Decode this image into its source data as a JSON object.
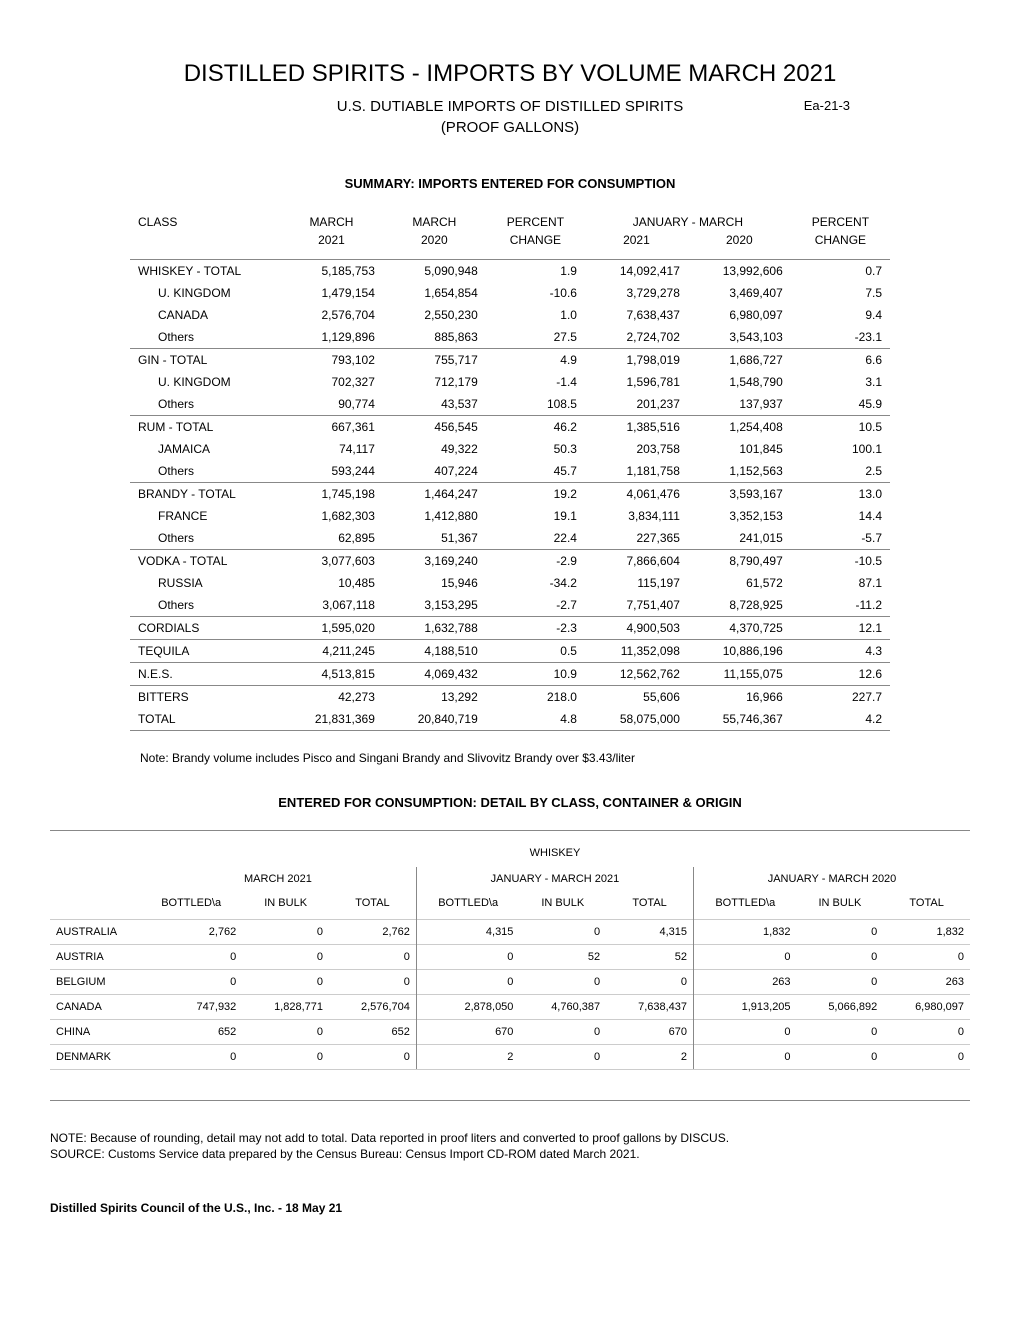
{
  "texts": {
    "main_title": "DISTILLED SPIRITS - IMPORTS BY VOLUME MARCH 2021",
    "subtitle": "U.S. DUTIABLE IMPORTS OF DISTILLED SPIRITS",
    "subtitle2": "(PROOF GALLONS)",
    "ea_code": "Ea-21-3",
    "summary_heading": "SUMMARY: IMPORTS ENTERED FOR CONSUMPTION",
    "note": "Note: Brandy volume includes Pisco and Singani Brandy and Slivovitz Brandy over $3.43/liter",
    "detail_heading": "ENTERED FOR CONSUMPTION:  DETAIL BY CLASS, CONTAINER & ORIGIN",
    "whiskey_label": "WHISKEY",
    "footer_note1": "NOTE:   Because of rounding, detail may not add to total.  Data reported in proof liters and converted to proof gallons by DISCUS.",
    "footer_note2": "SOURCE: Customs Service data prepared by the Census Bureau: Census Import CD-ROM dated March 2021.",
    "page_footer": "Distilled Spirits Council of the U.S., Inc. - 18 May 21"
  },
  "summary": {
    "headers": {
      "class": "CLASS",
      "march": "MARCH",
      "percent": "PERCENT",
      "jan_march": "JANUARY - MARCH",
      "y2021": "2021",
      "y2020": "2020",
      "change": "CHANGE"
    },
    "rows": [
      {
        "class": "WHISKEY - TOTAL",
        "m21": "5,185,753",
        "m20": "5,090,948",
        "pc": "1.9",
        "j21": "14,092,417",
        "j20": "13,992,606",
        "jpc": "0.7",
        "indent": false,
        "sep": true
      },
      {
        "class": "U. KINGDOM",
        "m21": "1,479,154",
        "m20": "1,654,854",
        "pc": "-10.6",
        "j21": "3,729,278",
        "j20": "3,469,407",
        "jpc": "7.5",
        "indent": true,
        "sep": false
      },
      {
        "class": "CANADA",
        "m21": "2,576,704",
        "m20": "2,550,230",
        "pc": "1.0",
        "j21": "7,638,437",
        "j20": "6,980,097",
        "jpc": "9.4",
        "indent": true,
        "sep": false
      },
      {
        "class": "Others",
        "m21": "1,129,896",
        "m20": "885,863",
        "pc": "27.5",
        "j21": "2,724,702",
        "j20": "3,543,103",
        "jpc": "-23.1",
        "indent": true,
        "sep": false
      },
      {
        "class": "GIN - TOTAL",
        "m21": "793,102",
        "m20": "755,717",
        "pc": "4.9",
        "j21": "1,798,019",
        "j20": "1,686,727",
        "jpc": "6.6",
        "indent": false,
        "sep": true
      },
      {
        "class": "U. KINGDOM",
        "m21": "702,327",
        "m20": "712,179",
        "pc": "-1.4",
        "j21": "1,596,781",
        "j20": "1,548,790",
        "jpc": "3.1",
        "indent": true,
        "sep": false
      },
      {
        "class": "Others",
        "m21": "90,774",
        "m20": "43,537",
        "pc": "108.5",
        "j21": "201,237",
        "j20": "137,937",
        "jpc": "45.9",
        "indent": true,
        "sep": false
      },
      {
        "class": "RUM - TOTAL",
        "m21": "667,361",
        "m20": "456,545",
        "pc": "46.2",
        "j21": "1,385,516",
        "j20": "1,254,408",
        "jpc": "10.5",
        "indent": false,
        "sep": true
      },
      {
        "class": "JAMAICA",
        "m21": "74,117",
        "m20": "49,322",
        "pc": "50.3",
        "j21": "203,758",
        "j20": "101,845",
        "jpc": "100.1",
        "indent": true,
        "sep": false
      },
      {
        "class": "Others",
        "m21": "593,244",
        "m20": "407,224",
        "pc": "45.7",
        "j21": "1,181,758",
        "j20": "1,152,563",
        "jpc": "2.5",
        "indent": true,
        "sep": false
      },
      {
        "class": "BRANDY - TOTAL",
        "m21": "1,745,198",
        "m20": "1,464,247",
        "pc": "19.2",
        "j21": "4,061,476",
        "j20": "3,593,167",
        "jpc": "13.0",
        "indent": false,
        "sep": true
      },
      {
        "class": "FRANCE",
        "m21": "1,682,303",
        "m20": "1,412,880",
        "pc": "19.1",
        "j21": "3,834,111",
        "j20": "3,352,153",
        "jpc": "14.4",
        "indent": true,
        "sep": false
      },
      {
        "class": "Others",
        "m21": "62,895",
        "m20": "51,367",
        "pc": "22.4",
        "j21": "227,365",
        "j20": "241,015",
        "jpc": "-5.7",
        "indent": true,
        "sep": false
      },
      {
        "class": "VODKA - TOTAL",
        "m21": "3,077,603",
        "m20": "3,169,240",
        "pc": "-2.9",
        "j21": "7,866,604",
        "j20": "8,790,497",
        "jpc": "-10.5",
        "indent": false,
        "sep": true
      },
      {
        "class": "RUSSIA",
        "m21": "10,485",
        "m20": "15,946",
        "pc": "-34.2",
        "j21": "115,197",
        "j20": "61,572",
        "jpc": "87.1",
        "indent": true,
        "sep": false
      },
      {
        "class": "Others",
        "m21": "3,067,118",
        "m20": "3,153,295",
        "pc": "-2.7",
        "j21": "7,751,407",
        "j20": "8,728,925",
        "jpc": "-11.2",
        "indent": true,
        "sep": false
      },
      {
        "class": "CORDIALS",
        "m21": "1,595,020",
        "m20": "1,632,788",
        "pc": "-2.3",
        "j21": "4,900,503",
        "j20": "4,370,725",
        "jpc": "12.1",
        "indent": false,
        "sep": true
      },
      {
        "class": "TEQUILA",
        "m21": "4,211,245",
        "m20": "4,188,510",
        "pc": "0.5",
        "j21": "11,352,098",
        "j20": "10,886,196",
        "jpc": "4.3",
        "indent": false,
        "sep": true
      },
      {
        "class": "N.E.S.",
        "m21": "4,513,815",
        "m20": "4,069,432",
        "pc": "10.9",
        "j21": "12,562,762",
        "j20": "11,155,075",
        "jpc": "12.6",
        "indent": false,
        "sep": true
      },
      {
        "class": "BITTERS",
        "m21": "42,273",
        "m20": "13,292",
        "pc": "218.0",
        "j21": "55,606",
        "j20": "16,966",
        "jpc": "227.7",
        "indent": false,
        "sep": true
      },
      {
        "class": "TOTAL",
        "m21": "21,831,369",
        "m20": "20,840,719",
        "pc": "4.8",
        "j21": "58,075,000",
        "j20": "55,746,367",
        "jpc": "4.2",
        "indent": false,
        "sep": false,
        "bottom": true
      }
    ]
  },
  "detail": {
    "periods": {
      "m2021": "MARCH 2021",
      "jm2021": "JANUARY - MARCH 2021",
      "jm2020": "JANUARY - MARCH 2020"
    },
    "col_headers": {
      "bottled": "BOTTLED\\a",
      "in_bulk": "IN BULK",
      "total": "TOTAL"
    },
    "rows": [
      {
        "country": "AUSTRALIA",
        "b1": "2,762",
        "k1": "0",
        "t1": "2,762",
        "b2": "4,315",
        "k2": "0",
        "t2": "4,315",
        "b3": "1,832",
        "k3": "0",
        "t3": "1,832",
        "last": false
      },
      {
        "country": "AUSTRIA",
        "b1": "0",
        "k1": "0",
        "t1": "0",
        "b2": "0",
        "k2": "52",
        "t2": "52",
        "b3": "0",
        "k3": "0",
        "t3": "0",
        "last": false
      },
      {
        "country": "BELGIUM",
        "b1": "0",
        "k1": "0",
        "t1": "0",
        "b2": "0",
        "k2": "0",
        "t2": "0",
        "b3": "263",
        "k3": "0",
        "t3": "263",
        "last": false
      },
      {
        "country": "CANADA",
        "b1": "747,932",
        "k1": "1,828,771",
        "t1": "2,576,704",
        "b2": "2,878,050",
        "k2": "4,760,387",
        "t2": "7,638,437",
        "b3": "1,913,205",
        "k3": "5,066,892",
        "t3": "6,980,097",
        "last": false
      },
      {
        "country": "CHINA",
        "b1": "652",
        "k1": "0",
        "t1": "652",
        "b2": "670",
        "k2": "0",
        "t2": "670",
        "b3": "0",
        "k3": "0",
        "t3": "0",
        "last": false
      },
      {
        "country": "DENMARK",
        "b1": "0",
        "k1": "0",
        "t1": "0",
        "b2": "2",
        "k2": "0",
        "t2": "2",
        "b3": "0",
        "k3": "0",
        "t3": "0",
        "last": true
      }
    ]
  },
  "style": {
    "background_color": "#ffffff",
    "text_color": "#000000",
    "border_color": "#888888",
    "light_border_color": "#cccccc",
    "title_fontsize": 24,
    "body_fontsize": 12,
    "table_fontsize": 12,
    "detail_fontsize": 11
  }
}
